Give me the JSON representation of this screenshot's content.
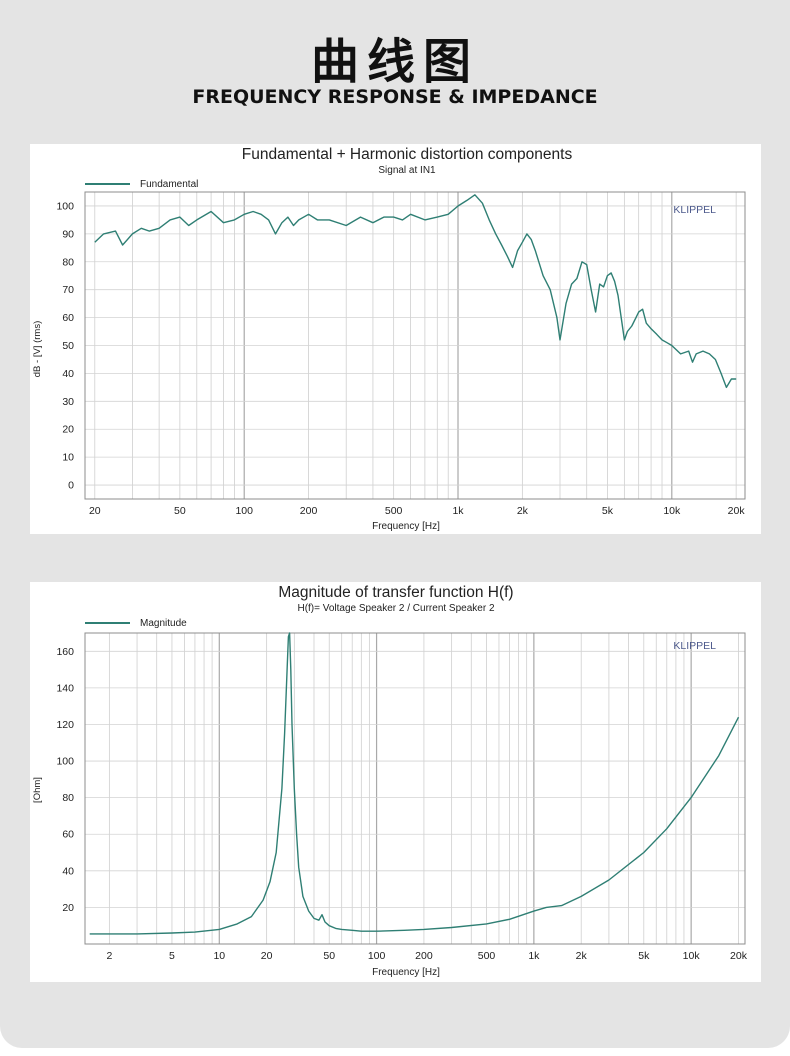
{
  "header": {
    "title_cn": "曲线图",
    "title_en": "FREQUENCY RESPONSE & IMPEDANCE"
  },
  "chart_data": [
    {
      "type": "line",
      "title": "Fundamental + Harmonic distortion components",
      "subtitle": "Signal at IN1",
      "xlabel": "Frequency [Hz]",
      "ylabel": "dB - [V] (rms)",
      "watermark": "KLIPPEL",
      "x_scale": "log",
      "xlim": [
        18,
        22000
      ],
      "ylim": [
        -5,
        105
      ],
      "x_ticks": [
        {
          "v": 20,
          "label": "20"
        },
        {
          "v": 50,
          "label": "50"
        },
        {
          "v": 100,
          "label": "100"
        },
        {
          "v": 200,
          "label": "200"
        },
        {
          "v": 500,
          "label": "500"
        },
        {
          "v": 1000,
          "label": "1k"
        },
        {
          "v": 2000,
          "label": "2k"
        },
        {
          "v": 5000,
          "label": "5k"
        },
        {
          "v": 10000,
          "label": "10k"
        },
        {
          "v": 20000,
          "label": "20k"
        }
      ],
      "y_ticks": [
        {
          "v": 0,
          "label": "0"
        },
        {
          "v": 10,
          "label": "10"
        },
        {
          "v": 20,
          "label": "20"
        },
        {
          "v": 30,
          "label": "30"
        },
        {
          "v": 40,
          "label": "40"
        },
        {
          "v": 50,
          "label": "50"
        },
        {
          "v": 60,
          "label": "60"
        },
        {
          "v": 70,
          "label": "70"
        },
        {
          "v": 80,
          "label": "80"
        },
        {
          "v": 90,
          "label": "90"
        },
        {
          "v": 100,
          "label": "100"
        }
      ],
      "grid": true,
      "legend_position": "top-left",
      "series": [
        {
          "name": "Fundamental",
          "color": "#2f7f74",
          "x": [
            20,
            22,
            25,
            27,
            30,
            33,
            36,
            40,
            45,
            50,
            55,
            60,
            70,
            80,
            90,
            100,
            110,
            120,
            130,
            140,
            150,
            160,
            170,
            180,
            200,
            220,
            250,
            300,
            350,
            400,
            450,
            500,
            550,
            600,
            700,
            800,
            900,
            1000,
            1100,
            1200,
            1300,
            1400,
            1500,
            1600,
            1700,
            1800,
            1900,
            2000,
            2100,
            2200,
            2300,
            2500,
            2700,
            2900,
            3000,
            3200,
            3400,
            3600,
            3800,
            4000,
            4200,
            4400,
            4600,
            4800,
            5000,
            5200,
            5400,
            5600,
            5800,
            6000,
            6200,
            6500,
            6800,
            7000,
            7300,
            7600,
            8000,
            8500,
            9000,
            9500,
            10000,
            11000,
            12000,
            12500,
            13000,
            14000,
            15000,
            16000,
            17000,
            18000,
            19000,
            20000
          ],
          "values": [
            87,
            90,
            91,
            86,
            90,
            92,
            91,
            92,
            95,
            96,
            93,
            95,
            98,
            94,
            95,
            97,
            98,
            97,
            95,
            90,
            94,
            96,
            93,
            95,
            97,
            95,
            95,
            93,
            96,
            94,
            96,
            96,
            95,
            97,
            95,
            96,
            97,
            100,
            102,
            104,
            101,
            95,
            90,
            86,
            82,
            78,
            84,
            87,
            90,
            88,
            84,
            75,
            70,
            60,
            52,
            65,
            72,
            74,
            80,
            79,
            70,
            62,
            72,
            71,
            75,
            76,
            73,
            68,
            60,
            52,
            55,
            57,
            60,
            62,
            63,
            58,
            56,
            54,
            52,
            51,
            50,
            47,
            48,
            44,
            47,
            48,
            47,
            45,
            40,
            35,
            38,
            38
          ]
        }
      ]
    },
    {
      "type": "line",
      "title": "Magnitude of transfer function H(f)",
      "subtitle": "H(f)= Voltage Speaker 2 / Current Speaker 2",
      "xlabel": "Frequency [Hz]",
      "ylabel": "[Ohm]",
      "watermark": "KLIPPEL",
      "x_scale": "log",
      "xlim": [
        1.4,
        22000
      ],
      "ylim": [
        0,
        170
      ],
      "x_ticks": [
        {
          "v": 2,
          "label": "2"
        },
        {
          "v": 5,
          "label": "5"
        },
        {
          "v": 10,
          "label": "10"
        },
        {
          "v": 20,
          "label": "20"
        },
        {
          "v": 50,
          "label": "50"
        },
        {
          "v": 100,
          "label": "100"
        },
        {
          "v": 200,
          "label": "200"
        },
        {
          "v": 500,
          "label": "500"
        },
        {
          "v": 1000,
          "label": "1k"
        },
        {
          "v": 2000,
          "label": "2k"
        },
        {
          "v": 5000,
          "label": "5k"
        },
        {
          "v": 10000,
          "label": "10k"
        },
        {
          "v": 20000,
          "label": "20k"
        }
      ],
      "y_ticks": [
        {
          "v": 20,
          "label": "20"
        },
        {
          "v": 40,
          "label": "40"
        },
        {
          "v": 60,
          "label": "60"
        },
        {
          "v": 80,
          "label": "80"
        },
        {
          "v": 100,
          "label": "100"
        },
        {
          "v": 120,
          "label": "120"
        },
        {
          "v": 140,
          "label": "140"
        },
        {
          "v": 160,
          "label": "160"
        }
      ],
      "grid": true,
      "legend_position": "top-left",
      "series": [
        {
          "name": "Magnitude",
          "color": "#2f7f74",
          "x": [
            1.5,
            2,
            3,
            5,
            7,
            10,
            13,
            16,
            19,
            21,
            23,
            25,
            26,
            27,
            27.5,
            28,
            28.5,
            29,
            30,
            31,
            32,
            34,
            37,
            40,
            43,
            45,
            47,
            50,
            55,
            60,
            70,
            80,
            100,
            150,
            200,
            300,
            500,
            700,
            1000,
            1200,
            1500,
            2000,
            3000,
            5000,
            7000,
            10000,
            15000,
            20000
          ],
          "values": [
            5.5,
            5.5,
            5.5,
            6,
            6.5,
            8,
            11,
            15,
            24,
            34,
            50,
            85,
            115,
            150,
            168,
            170,
            150,
            120,
            85,
            60,
            42,
            26,
            18,
            14,
            13,
            16,
            12,
            10,
            8.5,
            8,
            7.5,
            7,
            7,
            7.5,
            8,
            9,
            11,
            13.5,
            18,
            20,
            21,
            26,
            35,
            50,
            63,
            80,
            103,
            124
          ]
        }
      ]
    }
  ]
}
